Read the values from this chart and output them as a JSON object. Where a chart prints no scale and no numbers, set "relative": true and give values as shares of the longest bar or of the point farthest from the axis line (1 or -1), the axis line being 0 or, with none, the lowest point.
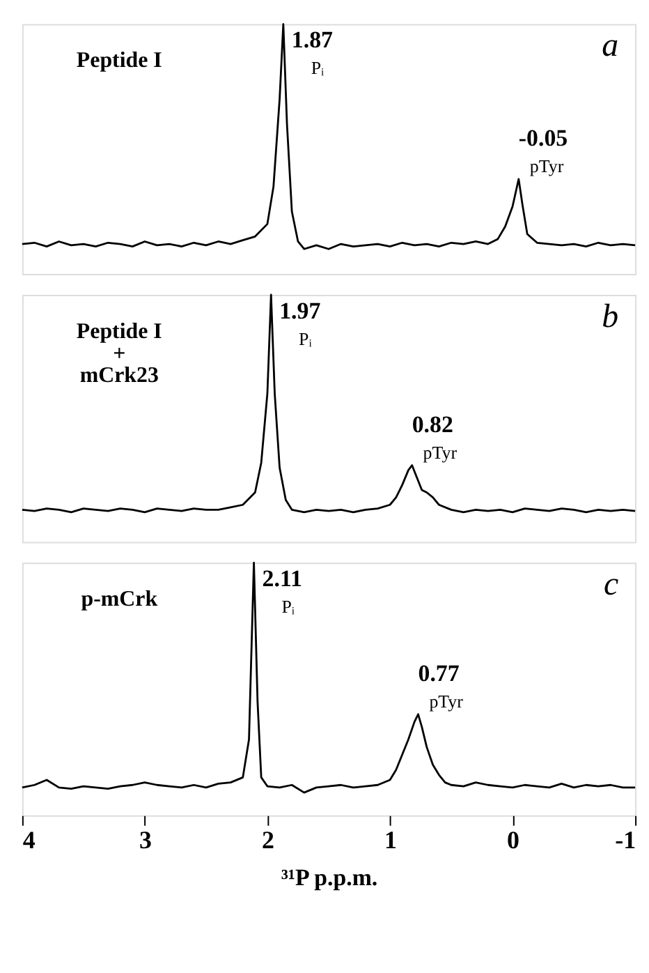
{
  "chart_data": [
    {
      "type": "line",
      "relative": true,
      "xlim": [
        4,
        -1
      ],
      "tick_labels": false,
      "x": [
        4.0,
        3.9,
        3.8,
        3.7,
        3.6,
        3.5,
        3.4,
        3.3,
        3.2,
        3.1,
        3.0,
        2.9,
        2.8,
        2.7,
        2.6,
        2.5,
        2.4,
        2.3,
        2.2,
        2.1,
        2.0,
        1.95,
        1.9,
        1.87,
        1.84,
        1.8,
        1.75,
        1.7,
        1.6,
        1.5,
        1.4,
        1.3,
        1.2,
        1.1,
        1.0,
        0.9,
        0.8,
        0.7,
        0.6,
        0.5,
        0.4,
        0.3,
        0.2,
        0.12,
        0.06,
        0.0,
        -0.05,
        -0.08,
        -0.12,
        -0.2,
        -0.3,
        -0.4,
        -0.5,
        -0.6,
        -0.7,
        -0.8,
        -0.9,
        -1.0
      ],
      "series": [
        {
          "color": "#000000",
          "values": [
            0.12,
            0.125,
            0.11,
            0.13,
            0.115,
            0.12,
            0.11,
            0.125,
            0.12,
            0.11,
            0.13,
            0.115,
            0.12,
            0.11,
            0.125,
            0.115,
            0.13,
            0.12,
            0.135,
            0.15,
            0.2,
            0.35,
            0.7,
            1.0,
            0.6,
            0.25,
            0.13,
            0.1,
            0.115,
            0.1,
            0.12,
            0.11,
            0.115,
            0.12,
            0.11,
            0.125,
            0.115,
            0.12,
            0.11,
            0.125,
            0.12,
            0.13,
            0.12,
            0.14,
            0.19,
            0.27,
            0.38,
            0.28,
            0.16,
            0.125,
            0.12,
            0.115,
            0.12,
            0.11,
            0.125,
            0.115,
            0.12,
            0.115
          ]
        }
      ],
      "annotations": [
        "Peptide I",
        "a",
        {
          "text": "1.87",
          "x": 1.87,
          "y": 1.0
        },
        {
          "text": "Pᵢ",
          "x": 1.87,
          "y": 1.0
        },
        {
          "text": "-0.05",
          "x": -0.05,
          "y": 0.38
        },
        {
          "text": "pTyr",
          "x": -0.05,
          "y": 0.38
        }
      ]
    },
    {
      "type": "line",
      "relative": true,
      "xlim": [
        4,
        -1
      ],
      "tick_labels": false,
      "x": [
        4.0,
        3.9,
        3.8,
        3.7,
        3.6,
        3.5,
        3.4,
        3.3,
        3.2,
        3.1,
        3.0,
        2.9,
        2.8,
        2.7,
        2.6,
        2.5,
        2.4,
        2.3,
        2.2,
        2.1,
        2.05,
        2.0,
        1.97,
        1.94,
        1.9,
        1.85,
        1.8,
        1.7,
        1.6,
        1.5,
        1.4,
        1.3,
        1.2,
        1.1,
        1.0,
        0.95,
        0.9,
        0.85,
        0.82,
        0.78,
        0.74,
        0.7,
        0.65,
        0.6,
        0.5,
        0.4,
        0.3,
        0.2,
        0.1,
        0.0,
        -0.1,
        -0.2,
        -0.3,
        -0.4,
        -0.5,
        -0.6,
        -0.7,
        -0.8,
        -0.9,
        -1.0
      ],
      "series": [
        {
          "color": "#000000",
          "values": [
            0.13,
            0.125,
            0.135,
            0.13,
            0.12,
            0.135,
            0.13,
            0.125,
            0.135,
            0.13,
            0.12,
            0.135,
            0.13,
            0.125,
            0.135,
            0.13,
            0.13,
            0.14,
            0.15,
            0.2,
            0.32,
            0.6,
            1.0,
            0.6,
            0.3,
            0.17,
            0.13,
            0.12,
            0.13,
            0.125,
            0.13,
            0.12,
            0.13,
            0.135,
            0.15,
            0.18,
            0.23,
            0.29,
            0.31,
            0.26,
            0.21,
            0.2,
            0.18,
            0.15,
            0.13,
            0.12,
            0.13,
            0.125,
            0.13,
            0.12,
            0.135,
            0.13,
            0.125,
            0.135,
            0.13,
            0.12,
            0.13,
            0.125,
            0.13,
            0.125
          ]
        }
      ],
      "annotations": [
        "Peptide I\n+\nmCrk23",
        "b",
        {
          "text": "1.97",
          "x": 1.97,
          "y": 1.0
        },
        {
          "text": "Pᵢ",
          "x": 1.97,
          "y": 1.0
        },
        {
          "text": "0.82",
          "x": 0.82,
          "y": 0.31
        },
        {
          "text": "pTyr",
          "x": 0.82,
          "y": 0.31
        }
      ]
    },
    {
      "type": "line",
      "relative": true,
      "xlim": [
        4,
        -1
      ],
      "xticks": [
        {
          "value": 4,
          "label": "4"
        },
        {
          "value": 3,
          "label": "3"
        },
        {
          "value": 2,
          "label": "2"
        },
        {
          "value": 1,
          "label": "1"
        },
        {
          "value": 0,
          "label": "0"
        },
        {
          "value": -1,
          "label": "-1"
        }
      ],
      "xlabel": "³¹P p.p.m.",
      "x": [
        4.0,
        3.9,
        3.8,
        3.7,
        3.6,
        3.5,
        3.4,
        3.3,
        3.2,
        3.1,
        3.0,
        2.9,
        2.8,
        2.7,
        2.6,
        2.5,
        2.4,
        2.3,
        2.2,
        2.15,
        2.11,
        2.08,
        2.05,
        2.0,
        1.9,
        1.8,
        1.7,
        1.6,
        1.5,
        1.4,
        1.3,
        1.2,
        1.1,
        1.0,
        0.95,
        0.9,
        0.85,
        0.8,
        0.77,
        0.74,
        0.7,
        0.65,
        0.6,
        0.55,
        0.5,
        0.4,
        0.3,
        0.2,
        0.1,
        0.0,
        -0.1,
        -0.2,
        -0.3,
        -0.4,
        -0.5,
        -0.6,
        -0.7,
        -0.8,
        -0.9,
        -1.0
      ],
      "series": [
        {
          "color": "#000000",
          "values": [
            0.11,
            0.12,
            0.14,
            0.11,
            0.105,
            0.115,
            0.11,
            0.105,
            0.115,
            0.12,
            0.13,
            0.12,
            0.115,
            0.11,
            0.12,
            0.11,
            0.125,
            0.13,
            0.15,
            0.3,
            1.0,
            0.45,
            0.15,
            0.115,
            0.11,
            0.12,
            0.09,
            0.11,
            0.115,
            0.12,
            0.11,
            0.115,
            0.12,
            0.14,
            0.18,
            0.24,
            0.3,
            0.37,
            0.4,
            0.35,
            0.27,
            0.2,
            0.16,
            0.13,
            0.12,
            0.115,
            0.13,
            0.12,
            0.115,
            0.11,
            0.12,
            0.115,
            0.11,
            0.125,
            0.11,
            0.12,
            0.115,
            0.12,
            0.11,
            0.11
          ]
        }
      ],
      "annotations": [
        "p-mCrk",
        "c",
        {
          "text": "2.11",
          "x": 2.11,
          "y": 1.0
        },
        {
          "text": "Pᵢ",
          "x": 2.11,
          "y": 1.0
        },
        {
          "text": "0.77",
          "x": 0.77,
          "y": 0.4
        },
        {
          "text": "pTyr",
          "x": 0.77,
          "y": 0.4
        }
      ]
    }
  ]
}
